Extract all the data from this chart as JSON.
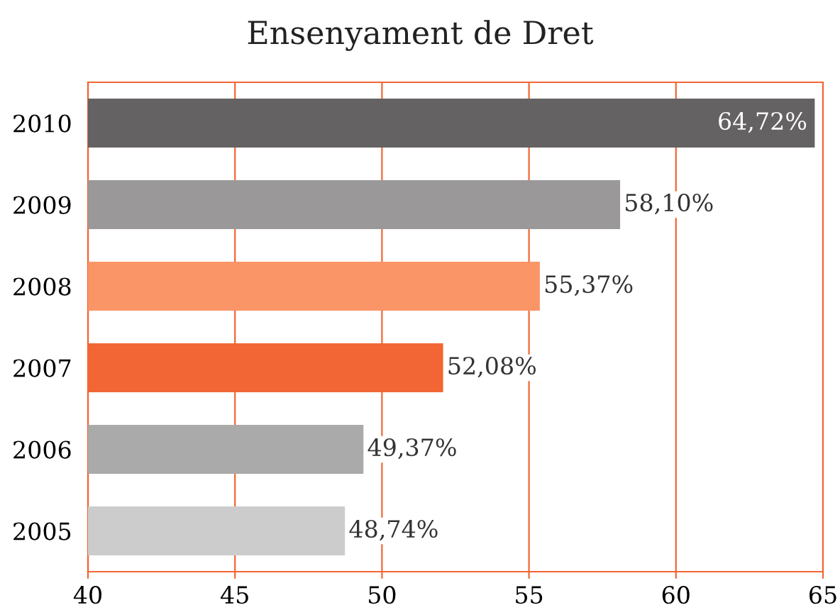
{
  "chart_data": {
    "type": "bar",
    "orientation": "horizontal",
    "title": "Ensenyament de Dret",
    "categories": [
      "2010",
      "2009",
      "2008",
      "2007",
      "2006",
      "2005"
    ],
    "values": [
      64.72,
      58.1,
      55.37,
      52.08,
      49.37,
      48.74
    ],
    "value_labels": [
      "64,72%",
      "58,10%",
      "55,37%",
      "52,08%",
      "49,37%",
      "48,74%"
    ],
    "colors": [
      "#656263",
      "#9a9899",
      "#f99566",
      "#f26635",
      "#aaaaaa",
      "#cccccc"
    ],
    "xlim": [
      40,
      65
    ],
    "xticks": [
      40,
      45,
      50,
      55,
      60,
      65
    ],
    "grid": "x"
  }
}
